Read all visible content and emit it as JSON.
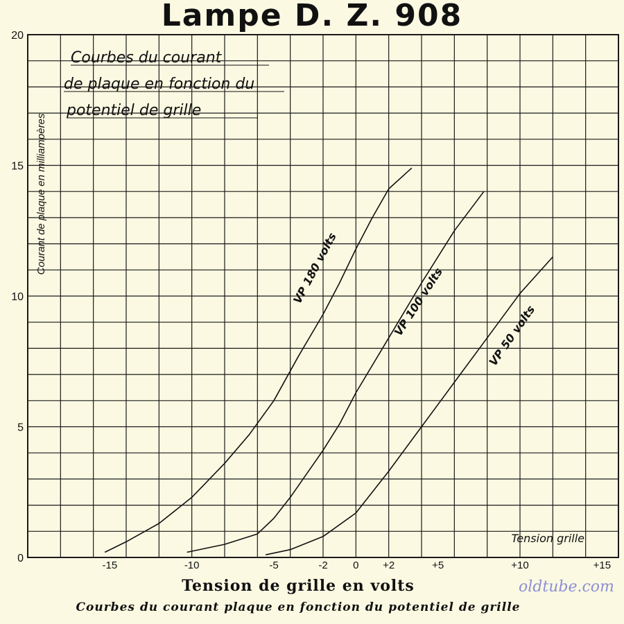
{
  "title": "Lampe D. Z. 908",
  "watermark": "oldtube.com",
  "caption": "Courbes du courant plaque en fonction du potentiel de grille",
  "colors": {
    "background": "#fbf9e2",
    "grid": "#1a1a1a",
    "curve": "#111111",
    "watermark": "#8c8fd6"
  },
  "chart_data": {
    "type": "line",
    "title": "Lampe D. Z. 908",
    "annotation": [
      "Courbes du courant",
      "de plaque en fonction du",
      "potentiel de grille"
    ],
    "xlabel": "Tension de grille en volts",
    "xlabel_inside": "Tension grille",
    "ylabel": "Courant de plaque en milliampères",
    "xlim": [
      -20,
      16
    ],
    "ylim": [
      0,
      20
    ],
    "grid": true,
    "x_ticks": [
      {
        "v": -15,
        "label": "-15"
      },
      {
        "v": -10,
        "label": "-10"
      },
      {
        "v": -5,
        "label": "-5"
      },
      {
        "v": -2,
        "label": "-2"
      },
      {
        "v": 0,
        "label": "0"
      },
      {
        "v": 2,
        "label": "+2"
      },
      {
        "v": 5,
        "label": "+5"
      },
      {
        "v": 10,
        "label": "+10"
      },
      {
        "v": 15,
        "label": "+15"
      }
    ],
    "y_ticks": [
      {
        "v": 0,
        "label": "0"
      },
      {
        "v": 5,
        "label": "5"
      },
      {
        "v": 10,
        "label": "10"
      },
      {
        "v": 15,
        "label": "15"
      },
      {
        "v": 20,
        "label": "20"
      }
    ],
    "series": [
      {
        "name": "VP 180 volts",
        "label_at": [
          -2.3,
          11.0
        ],
        "label_angle": -62,
        "x": [
          -15.3,
          -14,
          -12,
          -10,
          -8,
          -6.5,
          -5,
          -3.5,
          -2,
          -1,
          0,
          1,
          2,
          3.4
        ],
        "y": [
          0.2,
          0.6,
          1.3,
          2.3,
          3.6,
          4.7,
          6.0,
          7.7,
          9.3,
          10.5,
          11.8,
          13.0,
          14.1,
          14.9
        ]
      },
      {
        "name": "VP 100 volts",
        "label_at": [
          4.0,
          9.7
        ],
        "label_angle": -57,
        "x": [
          -10.3,
          -8,
          -6,
          -5,
          -4,
          -3,
          -2,
          -1,
          0,
          2,
          4,
          6,
          7.8
        ],
        "y": [
          0.2,
          0.5,
          0.9,
          1.5,
          2.3,
          3.2,
          4.1,
          5.1,
          6.3,
          8.4,
          10.5,
          12.5,
          14.0
        ]
      },
      {
        "name": "VP 50 volts",
        "label_at": [
          9.7,
          8.4
        ],
        "label_angle": -55,
        "x": [
          -5.5,
          -4,
          -2,
          0,
          2,
          4,
          6,
          8,
          10,
          12
        ],
        "y": [
          0.1,
          0.3,
          0.8,
          1.7,
          3.3,
          5.0,
          6.7,
          8.4,
          10.1,
          11.5
        ]
      }
    ]
  }
}
